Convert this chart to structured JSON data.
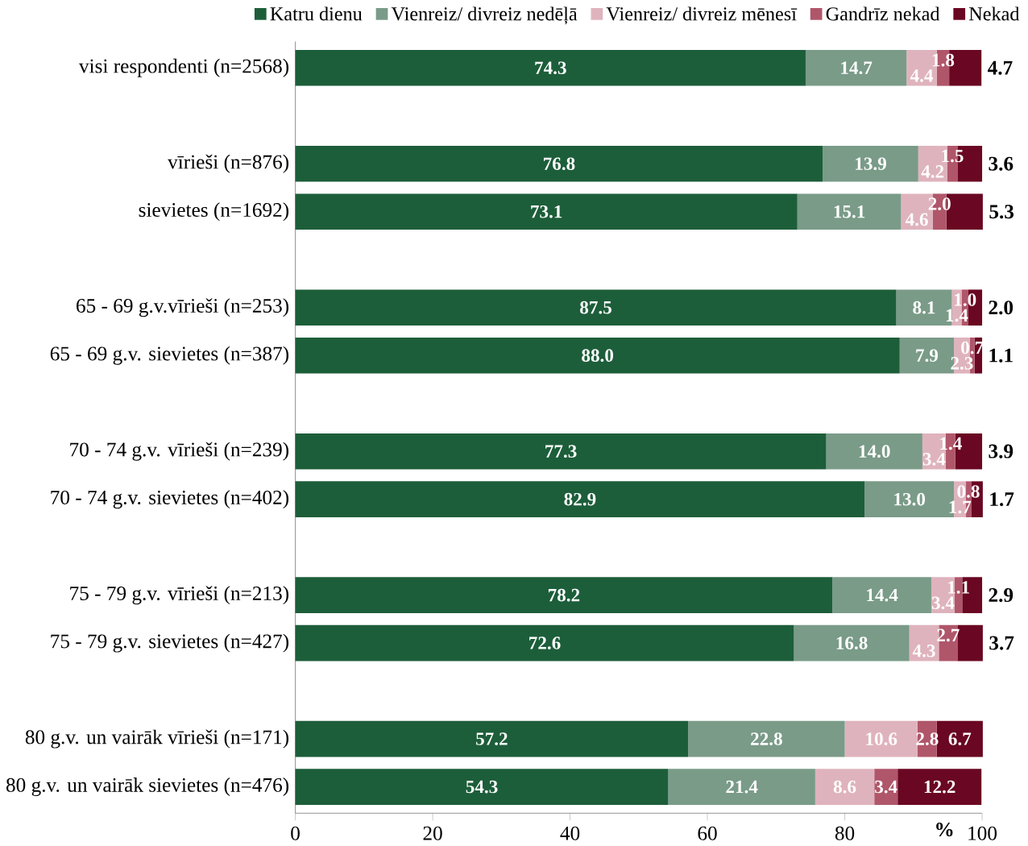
{
  "chart_data": {
    "type": "bar",
    "orientation": "horizontal",
    "stacked": true,
    "data_labels": true,
    "legend": "top",
    "grid": false,
    "xlabel": "%",
    "categories": [
      "visi respondenti (n=2568)",
      null,
      "vīrieši (n=876)",
      "sievietes (n=1692)",
      null,
      "65 - 69 g.v.vīrieši (n=253)",
      "65 - 69 g.v. sievietes (n=387)",
      null,
      "70 - 74 g.v. vīrieši (n=239)",
      "70 - 74 g.v. sievietes (n=402)",
      null,
      "75 - 79 g.v. vīrieši (n=213)",
      "75 - 79 g.v. sievietes (n=427)",
      null,
      "80 g.v. un vairāk vīrieši (n=171)",
      "80 g.v. un vairāk sievietes (n=476)"
    ],
    "xlim": [
      0,
      100
    ],
    "xticks": [
      0,
      20,
      40,
      60,
      80,
      100
    ],
    "series": [
      {
        "name": "Katru dienu",
        "color": "#1d5e3a",
        "values": [
          74.3,
          null,
          76.8,
          73.1,
          null,
          87.5,
          88.0,
          null,
          77.3,
          82.9,
          null,
          78.2,
          72.6,
          null,
          57.2,
          54.3
        ],
        "value_labels": [
          "74.3",
          null,
          "76.8",
          "73.1",
          null,
          "87.5",
          "88.0",
          null,
          "77.3",
          "82.9",
          null,
          "78.2",
          "72.6",
          null,
          "57.2",
          "54.3"
        ]
      },
      {
        "name": "Vienreiz/ divreiz nedēļā",
        "color": "#7a9b88",
        "values": [
          14.7,
          null,
          13.9,
          15.1,
          null,
          8.1,
          7.9,
          null,
          14.0,
          13.0,
          null,
          14.4,
          16.8,
          null,
          22.8,
          21.4
        ],
        "value_labels": [
          "14.7",
          null,
          "13.9",
          "15.1",
          null,
          "8.1",
          "7.9",
          null,
          "14.0",
          "13.0",
          null,
          "14.4",
          "16.8",
          null,
          "22.8",
          "21.4"
        ]
      },
      {
        "name": "Vienreiz/ divreiz mēnesī",
        "color": "#dfb3bd",
        "values": [
          4.4,
          null,
          4.2,
          4.6,
          null,
          1.4,
          2.3,
          null,
          3.4,
          1.7,
          null,
          3.4,
          4.3,
          null,
          10.6,
          8.6
        ],
        "value_labels": [
          "4.4",
          null,
          "4.2",
          "4.6",
          null,
          "1.4",
          "2.3",
          null,
          "3.4",
          "1.7",
          null,
          "3.4",
          "4.3",
          null,
          "10.6",
          "8.6"
        ]
      },
      {
        "name": "Gandrīz nekad",
        "color": "#b0566a",
        "values": [
          1.8,
          null,
          1.5,
          2.0,
          null,
          1.0,
          0.7,
          null,
          1.4,
          0.8,
          null,
          1.1,
          2.7,
          null,
          2.8,
          3.4
        ],
        "value_labels": [
          "1.8",
          null,
          "1.5",
          "2.0",
          null,
          "1.0",
          "0.7",
          null,
          "1.4",
          "0.8",
          null,
          "1.1",
          "2.7",
          null,
          "2.8",
          "3.4"
        ]
      },
      {
        "name": "Nekad",
        "color": "#6a0722",
        "values": [
          4.7,
          null,
          3.6,
          5.3,
          null,
          2.0,
          1.1,
          null,
          3.9,
          1.7,
          null,
          2.9,
          3.7,
          null,
          6.7,
          12.2
        ],
        "value_labels": [
          "4.7",
          null,
          "3.6",
          "5.3",
          null,
          "2.0",
          "1.1",
          null,
          "3.9",
          "1.7",
          null,
          "2.9",
          "3.7",
          null,
          "6.7",
          "12.2"
        ]
      }
    ]
  }
}
